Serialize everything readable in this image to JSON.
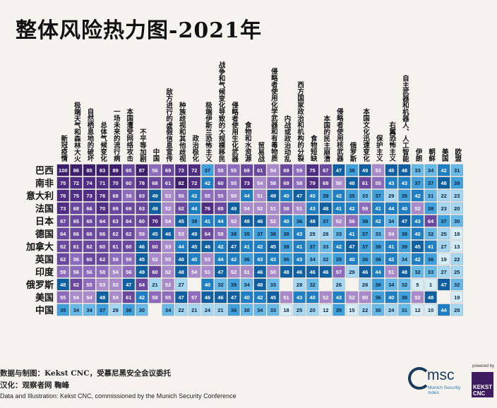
{
  "title": "整体风险热力图-2021年",
  "footer": {
    "line1": "数据与制图：Kekst CNC，受慕尼黑安全会议委托",
    "line2": "汉化：观察者网 鞠峰",
    "line3": "Data and Illustration: Kekst CNC, commissioned by the Munich Security Conference"
  },
  "logos": {
    "msc_name": "msc",
    "msc_sub": "Munich Security Index",
    "powered_by": "powered by",
    "kekst": "KEKST CNC"
  },
  "chart_data": {
    "type": "heatmap",
    "title": "整体风险热力图-2021年",
    "colors": {
      "very_high": "#3d1f6e",
      "high": "#4f2d85",
      "mid_high": "#6a48a0",
      "mid": "#8d6bbd",
      "mid_low": "#a98acb",
      "blue_dark": "#0f5fa3",
      "blue": "#1f7fc4",
      "blue_mid": "#3fa0dc",
      "blue_light": "#67b9e8",
      "blue_pale": "#a5d6f2",
      "blue_faint": "#d5ecf9",
      "missing": "#f6f3ef"
    },
    "columns": [
      "新冠疫情",
      "极端天气和森林大火",
      "自然栖息地的破坏",
      "总体气候变化",
      "一场未来的流行病",
      "本国遭受网络攻击",
      "不平等加剧",
      "中国",
      "敌方进行的虚假信息宣传",
      "种族歧视和其他歧视",
      "政治极化",
      "极端伊斯兰恐怖主义",
      "战争和气候变化导致的大规模移民",
      "侵略者使用生化武器",
      "食物和水资源",
      "贸易战",
      "侵略者使用化学武器和有毒物质",
      "内战或政治动乱",
      "西方国家政治和机构的分裂",
      "食物短缺",
      "本国的民主崩溃",
      "侵略者使用核武器",
      "俄罗斯",
      "本国文化迅速变化",
      "保护主义",
      "右翼恐怖主义",
      "自主武器和机器人、人工智能",
      "伊朗",
      "朝鲜",
      "美国",
      "欧盟"
    ],
    "rows": [
      "巴西",
      "南非",
      "意大利",
      "法国",
      "日本",
      "德国",
      "加拿大",
      "英国",
      "印度",
      "俄罗斯",
      "美国",
      "中国"
    ],
    "values": [
      [
        100,
        86,
        85,
        83,
        89,
        65,
        87,
        56,
        69,
        73,
        72,
        37,
        55,
        55,
        69,
        61,
        54,
        69,
        59,
        75,
        67,
        47,
        38,
        49,
        53,
        45,
        48,
        33,
        34,
        42,
        31
      ],
      [
        75,
        72,
        74,
        71,
        70,
        60,
        78,
        68,
        61,
        82,
        72,
        42,
        60,
        55,
        73,
        54,
        58,
        69,
        58,
        79,
        69,
        50,
        48,
        61,
        55,
        43,
        43,
        37,
        37,
        48,
        39
      ],
      [
        76,
        75,
        73,
        76,
        68,
        58,
        63,
        49,
        53,
        56,
        42,
        55,
        55,
        50,
        44,
        51,
        49,
        40,
        47,
        40,
        39,
        42,
        35,
        33,
        37,
        29,
        35,
        42,
        31,
        22,
        23
      ],
      [
        73,
        68,
        66,
        70,
        69,
        69,
        63,
        49,
        52,
        62,
        44,
        76,
        65,
        49,
        54,
        52,
        51,
        58,
        51,
        43,
        48,
        41,
        42,
        59,
        41,
        44,
        40,
        52,
        38,
        23,
        20
      ],
      [
        67,
        65,
        65,
        64,
        63,
        64,
        60,
        70,
        54,
        45,
        38,
        41,
        44,
        52,
        49,
        46,
        52,
        40,
        36,
        48,
        37,
        52,
        56,
        38,
        42,
        34,
        47,
        43,
        64,
        37,
        30
      ],
      [
        64,
        66,
        66,
        66,
        62,
        62,
        59,
        45,
        46,
        53,
        49,
        64,
        58,
        38,
        35,
        37,
        38,
        38,
        43,
        25,
        28,
        33,
        41,
        37,
        33,
        54,
        38,
        40,
        32,
        25,
        18
      ],
      [
        62,
        61,
        62,
        60,
        61,
        60,
        46,
        60,
        53,
        44,
        45,
        46,
        42,
        47,
        41,
        42,
        45,
        38,
        41,
        37,
        33,
        42,
        47,
        37,
        38,
        41,
        39,
        45,
        41,
        27,
        13
      ],
      [
        62,
        56,
        60,
        62,
        59,
        59,
        45,
        52,
        50,
        48,
        40,
        53,
        44,
        42,
        36,
        43,
        43,
        36,
        43,
        34,
        32,
        35,
        40,
        36,
        36,
        42,
        34,
        42,
        36,
        19,
        22
      ],
      [
        59,
        56,
        56,
        58,
        54,
        56,
        49,
        60,
        52,
        48,
        54,
        51,
        47,
        52,
        51,
        46,
        50,
        48,
        46,
        46,
        46,
        57,
        29,
        46,
        44,
        51,
        48,
        32,
        33,
        27,
        25
      ],
      [
        48,
        62,
        55,
        53,
        53,
        47,
        64,
        21,
        52,
        27,
        null,
        40,
        32,
        39,
        34,
        48,
        33,
        null,
        28,
        32,
        null,
        26,
        null,
        28,
        36,
        34,
        32,
        5,
        1,
        47,
        32
      ],
      [
        55,
        54,
        54,
        48,
        54,
        61,
        42,
        58,
        55,
        47,
        57,
        46,
        46,
        47,
        40,
        42,
        45,
        51,
        43,
        40,
        52,
        43,
        52,
        50,
        36,
        40,
        38,
        52,
        48,
        null,
        19
      ],
      [
        35,
        34,
        34,
        37,
        29,
        36,
        30,
        null,
        34,
        22,
        21,
        24,
        21,
        36,
        30,
        34,
        33,
        18,
        25,
        20,
        12,
        35,
        15,
        22,
        30,
        24,
        31,
        12,
        10,
        44,
        28
      ]
    ],
    "value_range": [
      0,
      100
    ],
    "legend": "none"
  }
}
